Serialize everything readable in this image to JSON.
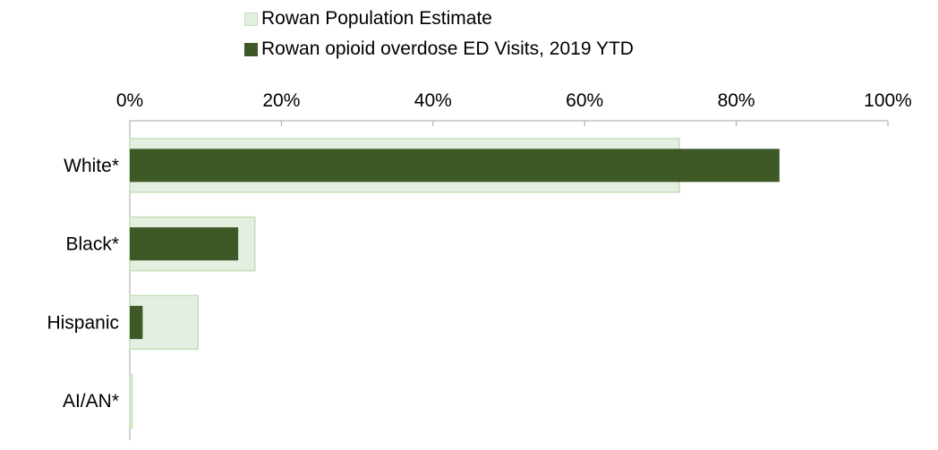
{
  "chart_data": {
    "type": "bar",
    "orientation": "horizontal",
    "categories": [
      "White*",
      "Black*",
      "Hispanic",
      "AI/AN*"
    ],
    "series": [
      {
        "name": "Rowan Population Estimate",
        "values": [
          72.5,
          16.5,
          9.0,
          0.3
        ],
        "color": "#e3efe0",
        "stroke": "#c5deb9"
      },
      {
        "name": "Rowan opioid overdose ED Visits, 2019 YTD",
        "values": [
          85.7,
          14.3,
          1.7,
          0
        ],
        "color": "#3d5a26"
      }
    ],
    "xlim": [
      0,
      100
    ],
    "x_ticks": [
      "0%",
      "20%",
      "40%",
      "60%",
      "80%",
      "100%"
    ],
    "axis_position": "top",
    "legend_position": "top",
    "grid": false
  }
}
